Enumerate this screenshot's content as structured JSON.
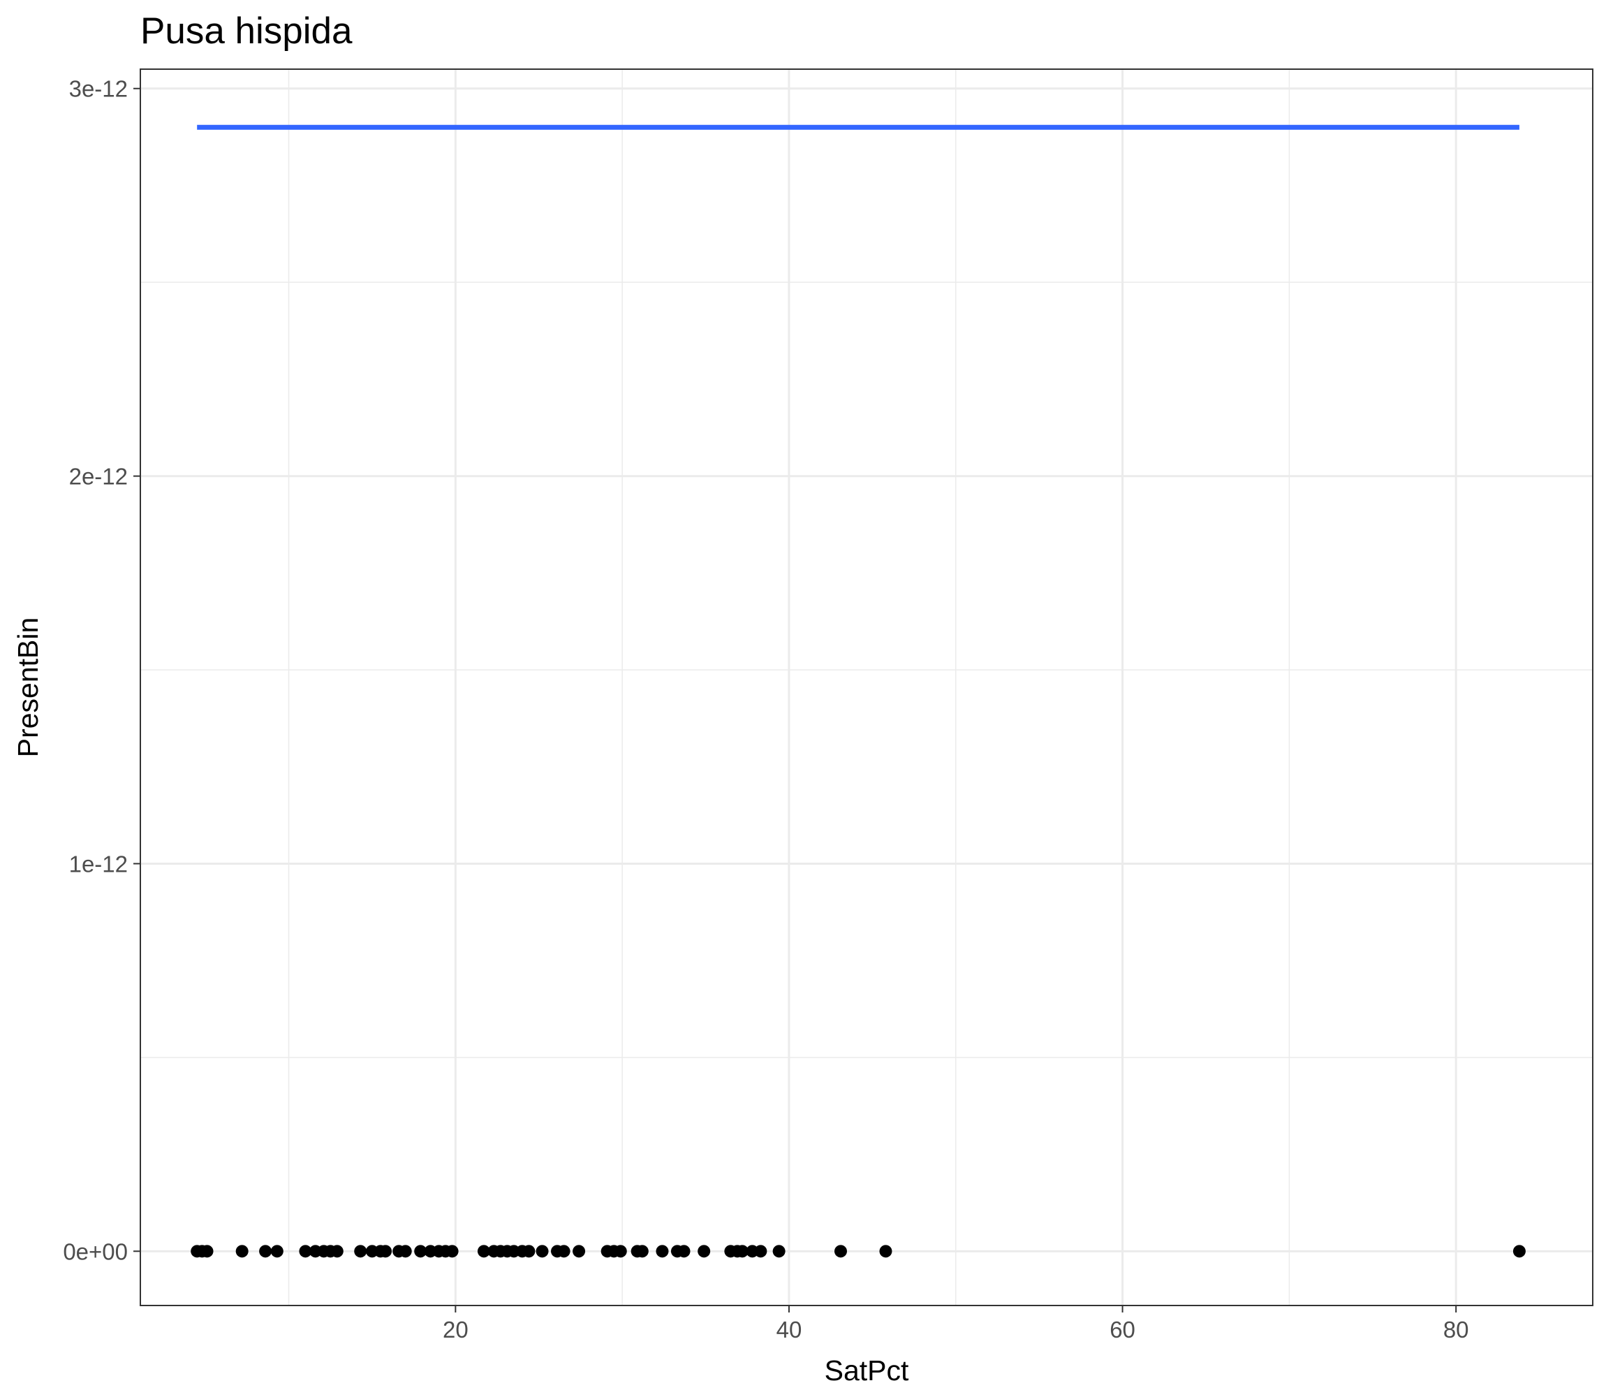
{
  "chart_data": {
    "type": "scatter",
    "title": "Pusa hispida",
    "xlabel": "SatPct",
    "ylabel": "PresentBin",
    "xlim": [
      1.1,
      88.2
    ],
    "ylim": [
      -1.4e-13,
      3.05e-12
    ],
    "x_ticks": [
      20,
      40,
      60,
      80
    ],
    "x_tick_labels": [
      "20",
      "40",
      "60",
      "80"
    ],
    "y_ticks": [
      0,
      1e-12,
      2e-12,
      3e-12
    ],
    "y_tick_labels": [
      "0e+00",
      "1e-12",
      "2e-12",
      "3e-12"
    ],
    "grid": true,
    "points": [
      {
        "x": 4.5,
        "y": 0
      },
      {
        "x": 4.8,
        "y": 0
      },
      {
        "x": 5.1,
        "y": 0
      },
      {
        "x": 7.2,
        "y": 0
      },
      {
        "x": 8.6,
        "y": 0
      },
      {
        "x": 9.3,
        "y": 0
      },
      {
        "x": 11.0,
        "y": 0
      },
      {
        "x": 11.6,
        "y": 0
      },
      {
        "x": 12.1,
        "y": 0
      },
      {
        "x": 12.5,
        "y": 0
      },
      {
        "x": 12.9,
        "y": 0
      },
      {
        "x": 14.3,
        "y": 0
      },
      {
        "x": 15.0,
        "y": 0
      },
      {
        "x": 15.5,
        "y": 0
      },
      {
        "x": 15.8,
        "y": 0
      },
      {
        "x": 16.6,
        "y": 0
      },
      {
        "x": 17.0,
        "y": 0
      },
      {
        "x": 17.9,
        "y": 0
      },
      {
        "x": 18.5,
        "y": 0
      },
      {
        "x": 19.0,
        "y": 0
      },
      {
        "x": 19.4,
        "y": 0
      },
      {
        "x": 19.8,
        "y": 0
      },
      {
        "x": 21.7,
        "y": 0
      },
      {
        "x": 22.3,
        "y": 0
      },
      {
        "x": 22.7,
        "y": 0
      },
      {
        "x": 23.1,
        "y": 0
      },
      {
        "x": 23.5,
        "y": 0
      },
      {
        "x": 24.0,
        "y": 0
      },
      {
        "x": 24.4,
        "y": 0
      },
      {
        "x": 25.2,
        "y": 0
      },
      {
        "x": 26.1,
        "y": 0
      },
      {
        "x": 26.5,
        "y": 0
      },
      {
        "x": 27.4,
        "y": 0
      },
      {
        "x": 29.1,
        "y": 0
      },
      {
        "x": 29.5,
        "y": 0
      },
      {
        "x": 29.9,
        "y": 0
      },
      {
        "x": 30.9,
        "y": 0
      },
      {
        "x": 31.2,
        "y": 0
      },
      {
        "x": 32.4,
        "y": 0
      },
      {
        "x": 33.3,
        "y": 0
      },
      {
        "x": 33.7,
        "y": 0
      },
      {
        "x": 34.9,
        "y": 0
      },
      {
        "x": 36.5,
        "y": 0
      },
      {
        "x": 36.9,
        "y": 0
      },
      {
        "x": 37.2,
        "y": 0
      },
      {
        "x": 37.8,
        "y": 0
      },
      {
        "x": 38.3,
        "y": 0
      },
      {
        "x": 39.4,
        "y": 0
      },
      {
        "x": 43.1,
        "y": 0
      },
      {
        "x": 45.8,
        "y": 0
      },
      {
        "x": 83.8,
        "y": 0
      }
    ],
    "series": [
      {
        "type": "line",
        "color": "#3366ff",
        "x": [
          4.5,
          83.8
        ],
        "y": [
          2.9e-12,
          2.9e-12
        ]
      }
    ],
    "colors": {
      "points": "#000000",
      "grid": "#ebebeb",
      "panel_border": "#333333",
      "background": "#ffffff"
    }
  }
}
